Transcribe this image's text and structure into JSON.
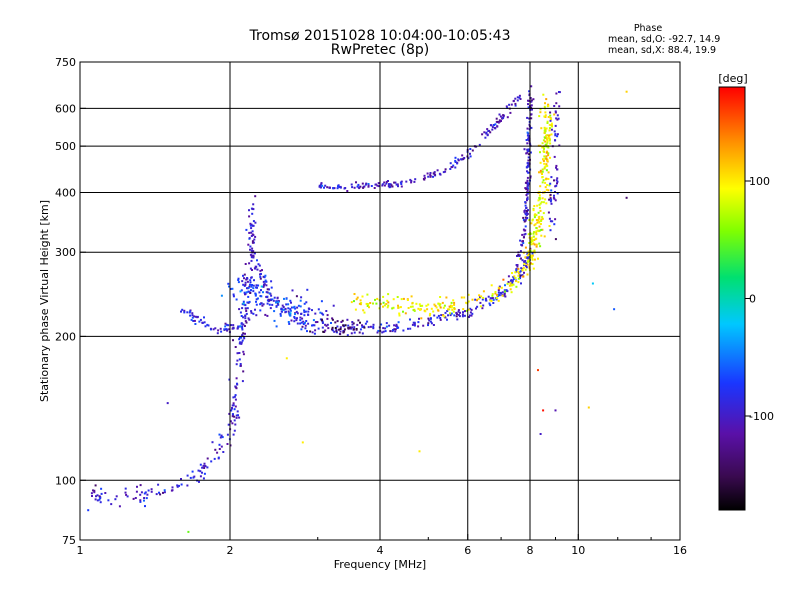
{
  "chart_data": {
    "type": "scatter",
    "title": "Tromsø 20151028 10:04:00-10:05:43",
    "subtitle": "RwPretec (8p)",
    "xlabel": "Frequency [MHz]",
    "ylabel": "Stationary phase Virtual Height [km]",
    "x_scale": "log",
    "y_scale": "log",
    "xlim": [
      1,
      16
    ],
    "ylim": [
      75,
      750
    ],
    "x_ticks": [
      1,
      2,
      4,
      6,
      8,
      10,
      16
    ],
    "x_tick_labels": [
      "1",
      "2",
      "4",
      "6",
      "8",
      "10",
      "16"
    ],
    "y_ticks": [
      75,
      100,
      200,
      300,
      400,
      500,
      600,
      750
    ],
    "y_tick_labels": [
      "75",
      "100",
      "200",
      "300",
      "400",
      "500",
      "600",
      "750"
    ],
    "grid": true,
    "stats": {
      "heading": "Phase",
      "o_line": "mean, sd,O: -92.7, 14.9",
      "x_line": "mean, sd,X: 88.4, 19.9"
    },
    "colorbar": {
      "label": "[deg]",
      "range": [
        -180,
        180
      ],
      "ticks": [
        100,
        0,
        -100
      ],
      "tick_labels": [
        "100",
        "0",
        "-100"
      ]
    },
    "traces": [
      {
        "shape": "seg",
        "pts": [
          [
            1.05,
            92
          ],
          [
            1.2,
            93
          ],
          [
            1.4,
            94
          ],
          [
            1.5,
            96
          ],
          [
            1.6,
            98
          ],
          [
            1.7,
            103
          ],
          [
            1.8,
            108
          ],
          [
            1.9,
            115
          ],
          [
            2.0,
            125
          ],
          [
            2.05,
            145
          ],
          [
            2.1,
            180
          ],
          [
            2.15,
            230
          ],
          [
            2.2,
            300
          ],
          [
            2.23,
            380
          ]
        ],
        "phase": -95,
        "n": 260,
        "sx": 0.012,
        "sy": 0.025
      },
      {
        "shape": "seg",
        "pts": [
          [
            1.6,
            230
          ],
          [
            1.7,
            218
          ],
          [
            1.8,
            210
          ],
          [
            1.9,
            207
          ],
          [
            2.0,
            208
          ],
          [
            2.1,
            210
          ]
        ],
        "phase": -90,
        "n": 60,
        "sx": 0.008,
        "sy": 0.01
      },
      {
        "shape": "seg",
        "pts": [
          [
            2.2,
            300
          ],
          [
            2.4,
            245
          ],
          [
            2.6,
            225
          ],
          [
            2.8,
            212
          ],
          [
            3.0,
            208
          ],
          [
            3.5,
            207
          ],
          [
            4.0,
            208
          ],
          [
            5.0,
            215
          ],
          [
            6.0,
            225
          ],
          [
            7.0,
            245
          ],
          [
            7.6,
            270
          ],
          [
            8.0,
            300
          ]
        ],
        "phase": -95,
        "n": 300,
        "sx": 0.01,
        "sy": 0.015
      },
      {
        "shape": "seg",
        "pts": [
          [
            2.1,
            260
          ],
          [
            2.3,
            240
          ],
          [
            2.5,
            230
          ],
          [
            2.8,
            225
          ],
          [
            3.0,
            220
          ]
        ],
        "phase": -75,
        "n": 160,
        "sx": 0.04,
        "sy": 0.04
      },
      {
        "shape": "seg",
        "pts": [
          [
            3.0,
            215
          ],
          [
            3.3,
            210
          ],
          [
            3.6,
            212
          ]
        ],
        "phase": -140,
        "n": 40,
        "sx": 0.03,
        "sy": 0.02
      },
      {
        "shape": "seg",
        "pts": [
          [
            3.5,
            235
          ],
          [
            4.0,
            238
          ],
          [
            4.5,
            232
          ],
          [
            5.0,
            228
          ],
          [
            5.5,
            230
          ],
          [
            6.0,
            235
          ],
          [
            7.0,
            250
          ],
          [
            7.8,
            275
          ],
          [
            8.2,
            300
          ]
        ],
        "phase": 95,
        "n": 200,
        "sx": 0.015,
        "sy": 0.02
      },
      {
        "shape": "seg",
        "pts": [
          [
            7.5,
            280
          ],
          [
            7.8,
            330
          ],
          [
            7.9,
            400
          ],
          [
            7.95,
            500
          ],
          [
            8.0,
            640
          ]
        ],
        "phase": -100,
        "n": 160,
        "sx": 0.006,
        "sy": 0.02
      },
      {
        "shape": "seg",
        "pts": [
          [
            8.0,
            300
          ],
          [
            8.3,
            340
          ],
          [
            8.5,
            400
          ],
          [
            8.6,
            500
          ],
          [
            8.7,
            600
          ]
        ],
        "phase": 95,
        "n": 220,
        "sx": 0.015,
        "sy": 0.03
      },
      {
        "shape": "seg",
        "pts": [
          [
            8.8,
            330
          ],
          [
            8.9,
            400
          ],
          [
            9.0,
            500
          ],
          [
            9.1,
            640
          ]
        ],
        "phase": -100,
        "n": 60,
        "sx": 0.01,
        "sy": 0.03
      },
      {
        "shape": "seg",
        "pts": [
          [
            3.0,
            415
          ],
          [
            3.5,
            410
          ],
          [
            4.0,
            415
          ],
          [
            4.5,
            420
          ],
          [
            5.0,
            432
          ],
          [
            5.5,
            450
          ],
          [
            6.0,
            480
          ],
          [
            6.5,
            520
          ],
          [
            7.0,
            570
          ],
          [
            7.5,
            620
          ],
          [
            7.8,
            640
          ]
        ],
        "phase": -100,
        "n": 190,
        "sx": 0.008,
        "sy": 0.01
      }
    ],
    "stray_points": [
      [
        2.8,
        120,
        100
      ],
      [
        4.8,
        115,
        100
      ],
      [
        12.5,
        650,
        110
      ],
      [
        10.5,
        142,
        110
      ],
      [
        12.5,
        390,
        -140
      ],
      [
        8.3,
        170,
        160
      ],
      [
        8.5,
        140,
        175
      ],
      [
        8.4,
        125,
        -100
      ],
      [
        9.0,
        140,
        -110
      ],
      [
        10.7,
        258,
        -20
      ],
      [
        11.8,
        228,
        -60
      ],
      [
        1.65,
        78,
        50
      ],
      [
        1.5,
        145,
        -100
      ],
      [
        2.6,
        180,
        100
      ]
    ]
  }
}
